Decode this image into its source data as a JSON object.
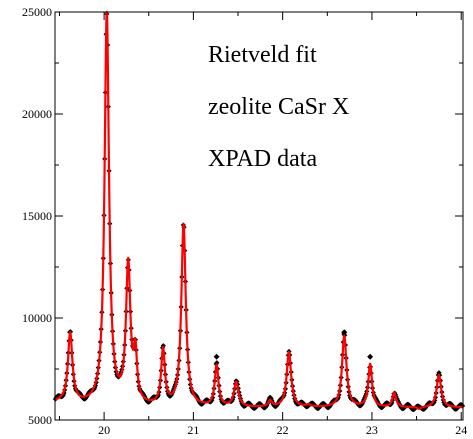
{
  "chart_data": {
    "type": "scatter",
    "title": "",
    "xlabel": "",
    "ylabel": "",
    "xlim": [
      19.45,
      24.02
    ],
    "ylim": [
      5000,
      25000
    ],
    "x_ticks": [
      20,
      21,
      22,
      23,
      24
    ],
    "y_ticks": [
      5000,
      10000,
      15000,
      20000,
      25000
    ],
    "grid": false,
    "annotations": [
      "Rietveld fit",
      "zeolite CaSr X",
      "XPAD data"
    ],
    "background_level": 5600,
    "peaks": [
      {
        "x": 19.62,
        "height": 9000,
        "width": 0.03
      },
      {
        "x": 20.03,
        "height": 24800,
        "width": 0.03
      },
      {
        "x": 20.27,
        "height": 12400,
        "width": 0.03
      },
      {
        "x": 20.35,
        "height": 7900,
        "width": 0.022
      },
      {
        "x": 20.66,
        "height": 8300,
        "width": 0.025
      },
      {
        "x": 20.89,
        "height": 14500,
        "width": 0.03
      },
      {
        "x": 21.26,
        "height": 7600,
        "width": 0.025
      },
      {
        "x": 21.48,
        "height": 6800,
        "width": 0.03
      },
      {
        "x": 21.86,
        "height": 5900,
        "width": 0.025
      },
      {
        "x": 22.07,
        "height": 8300,
        "width": 0.03
      },
      {
        "x": 22.29,
        "height": 5700,
        "width": 0.03
      },
      {
        "x": 22.69,
        "height": 9100,
        "width": 0.03
      },
      {
        "x": 22.98,
        "height": 7700,
        "width": 0.025
      },
      {
        "x": 23.25,
        "height": 6300,
        "width": 0.025
      },
      {
        "x": 23.53,
        "height": 5500,
        "width": 0.025
      },
      {
        "x": 23.75,
        "height": 7200,
        "width": 0.03
      }
    ],
    "outlier_points": [
      {
        "x": 21.26,
        "y": 8100
      },
      {
        "x": 22.69,
        "y": 9300
      },
      {
        "x": 22.98,
        "y": 8100
      }
    ],
    "series": [
      {
        "kind": "observed",
        "color": "#000000",
        "marker": "diamond"
      },
      {
        "kind": "calculated",
        "color": "#ff0000",
        "marker": "line"
      }
    ]
  }
}
